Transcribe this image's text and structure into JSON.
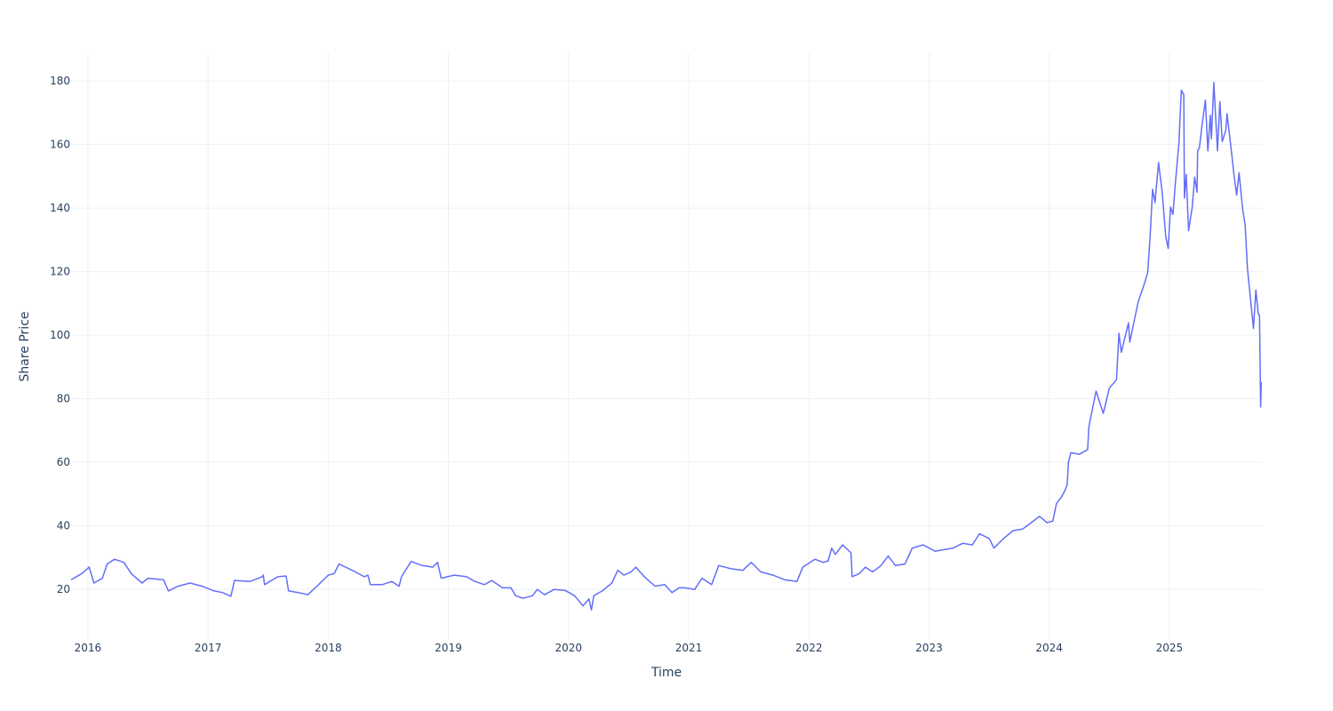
{
  "chart_data": {
    "type": "line",
    "title": "",
    "xlabel": "Time",
    "ylabel": "Share Price",
    "x_unit": "decimal year",
    "xlim": [
      2015.86,
      2025.77
    ],
    "ylim": [
      4.1,
      188.7
    ],
    "grid": true,
    "legend": "none",
    "line_color": "#636efa",
    "grid_color": "#ebf0f8",
    "text_color": "#2a3f5f",
    "xticks": [
      2016,
      2017,
      2018,
      2019,
      2020,
      2021,
      2022,
      2023,
      2024,
      2025
    ],
    "xtick_labels": [
      "2016",
      "2017",
      "2018",
      "2019",
      "2020",
      "2021",
      "2022",
      "2023",
      "2024",
      "2025"
    ],
    "yticks": [
      20,
      40,
      60,
      80,
      100,
      120,
      140,
      160,
      180
    ],
    "ytick_labels": [
      "20",
      "40",
      "60",
      "80",
      "100",
      "120",
      "140",
      "160",
      "180"
    ],
    "series": [
      {
        "name": "Share Price",
        "x": [
          2015.86,
          2015.95,
          2016.01,
          2016.05,
          2016.12,
          2016.16,
          2016.22,
          2016.3,
          2016.36,
          2016.45,
          2016.5,
          2016.63,
          2016.67,
          2016.75,
          2016.85,
          2016.95,
          2017.05,
          2017.12,
          2017.19,
          2017.22,
          2017.35,
          2017.45,
          2017.46,
          2017.47,
          2017.58,
          2017.65,
          2017.67,
          2017.75,
          2017.83,
          2017.92,
          2018.0,
          2018.05,
          2018.09,
          2018.2,
          2018.3,
          2018.33,
          2018.35,
          2018.45,
          2018.53,
          2018.59,
          2018.61,
          2018.69,
          2018.78,
          2018.87,
          2018.91,
          2018.94,
          2019.05,
          2019.15,
          2019.22,
          2019.3,
          2019.36,
          2019.45,
          2019.52,
          2019.56,
          2019.62,
          2019.7,
          2019.74,
          2019.8,
          2019.88,
          2019.97,
          2020.05,
          2020.12,
          2020.17,
          2020.19,
          2020.21,
          2020.28,
          2020.36,
          2020.41,
          2020.46,
          2020.52,
          2020.56,
          2020.63,
          2020.72,
          2020.8,
          2020.86,
          2020.92,
          2020.97,
          2021.05,
          2021.11,
          2021.19,
          2021.25,
          2021.35,
          2021.45,
          2021.52,
          2021.6,
          2021.7,
          2021.8,
          2021.9,
          2021.95,
          2022.05,
          2022.12,
          2022.16,
          2022.19,
          2022.22,
          2022.28,
          2022.35,
          2022.36,
          2022.42,
          2022.47,
          2022.53,
          2022.6,
          2022.66,
          2022.72,
          2022.8,
          2022.86,
          2022.95,
          2023.05,
          2023.12,
          2023.2,
          2023.28,
          2023.36,
          2023.42,
          2023.5,
          2023.54,
          2023.62,
          2023.7,
          2023.78,
          2023.85,
          2023.92,
          2023.98,
          2024.03,
          2024.06,
          2024.1,
          2024.13,
          2024.15,
          2024.16,
          2024.18,
          2024.25,
          2024.32,
          2024.33,
          2024.39,
          2024.45,
          2024.5,
          2024.56,
          2024.58,
          2024.6,
          2024.66,
          2024.67,
          2024.74,
          2024.79,
          2024.82,
          2024.84,
          2024.86,
          2024.88,
          2024.91,
          2024.94,
          2024.97,
          2024.99,
          2025.01,
          2025.03,
          2025.05,
          2025.08,
          2025.09,
          2025.1,
          2025.12,
          2025.125,
          2025.14,
          2025.16,
          2025.19,
          2025.21,
          2025.23,
          2025.235,
          2025.25,
          2025.27,
          2025.3,
          2025.32,
          2025.34,
          2025.35,
          2025.37,
          2025.4,
          2025.42,
          2025.44,
          2025.47,
          2025.48,
          2025.51,
          2025.54,
          2025.56,
          2025.58,
          2025.61,
          2025.63,
          2025.65,
          2025.68,
          2025.7,
          2025.72,
          2025.74,
          2025.75,
          2025.76,
          2025.765
        ],
        "y": [
          23,
          25,
          27,
          22,
          23.5,
          28,
          29.5,
          28.5,
          25,
          22,
          23.5,
          23,
          19.5,
          21,
          22,
          21,
          19.5,
          19,
          17.8,
          22.8,
          22.5,
          24,
          24.5,
          21.5,
          24,
          24.2,
          19.5,
          19,
          18.3,
          21.5,
          24.5,
          25,
          28,
          26,
          24,
          24.5,
          21.5,
          21.5,
          22.5,
          21,
          24,
          28.8,
          27.5,
          27,
          28.5,
          23.5,
          24.5,
          24,
          22.5,
          21.5,
          22.8,
          20.5,
          20.5,
          18,
          17.2,
          18,
          20,
          18.3,
          20,
          19.7,
          18,
          14.8,
          17,
          13.5,
          18,
          19.5,
          22,
          26,
          24.5,
          25.5,
          27,
          24,
          21,
          21.5,
          19,
          20.5,
          20.5,
          20,
          23.5,
          21.5,
          27.5,
          26.5,
          26,
          28.5,
          25.5,
          24.5,
          23,
          22.5,
          27,
          29.5,
          28.5,
          29,
          33,
          31,
          34,
          31.5,
          24,
          25,
          27,
          25.5,
          27.5,
          30.5,
          27.5,
          28,
          33,
          34,
          32,
          32.5,
          33,
          34.5,
          34,
          37.5,
          36,
          33,
          36,
          38.5,
          39,
          41,
          43,
          41,
          41.5,
          47,
          49,
          51,
          53,
          60,
          63,
          62.5,
          64,
          71.2,
          82.4,
          75.4,
          83.3,
          86,
          100.6,
          94.6,
          103.9,
          97.8,
          110.4,
          116,
          119.7,
          131,
          145.9,
          141.7,
          154.3,
          145,
          131,
          127.3,
          140.3,
          138,
          147.8,
          160.8,
          169.7,
          177.1,
          175.7,
          143.1,
          150.6,
          132.9,
          140.3,
          149.7,
          145,
          158,
          159,
          165.6,
          174,
          158,
          169.2,
          161.8,
          179.5,
          158,
          173.5,
          160.9,
          164.6,
          169.7,
          160,
          149.7,
          144.1,
          151.1,
          139.5,
          134.8,
          120.8,
          109.6,
          102.1,
          114.2,
          106.7,
          106.3,
          77.4,
          85.3
        ]
      }
    ]
  }
}
